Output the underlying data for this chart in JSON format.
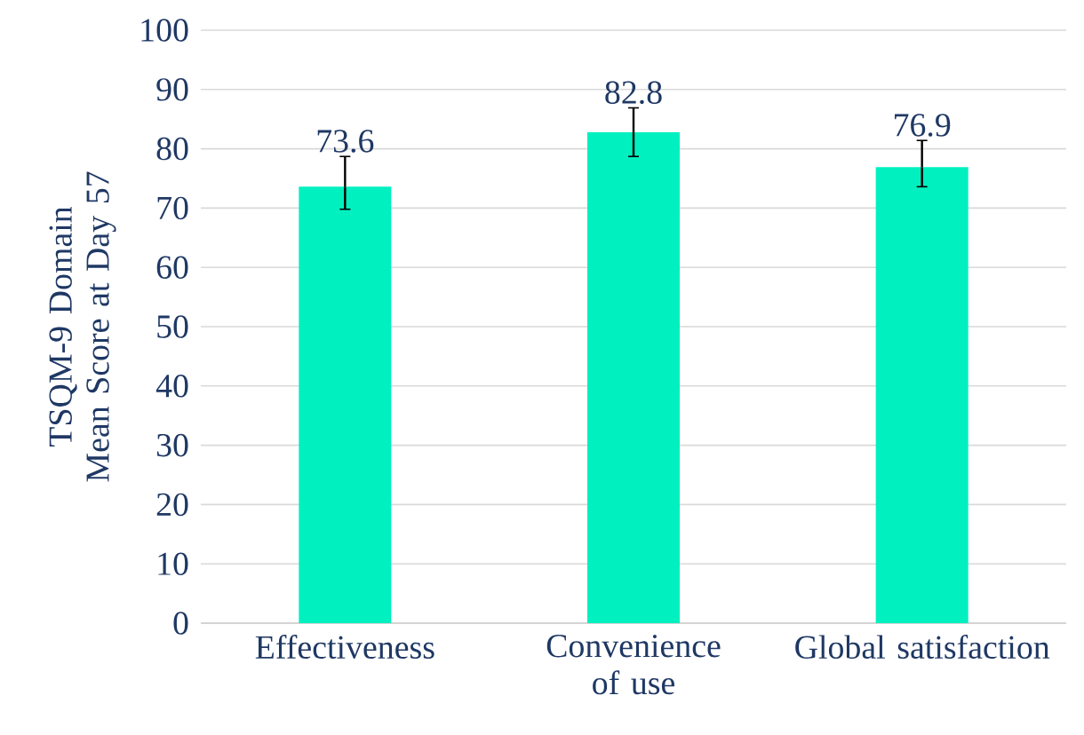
{
  "chart_data": {
    "type": "bar",
    "ylabel": "TSQM-9 Domain Mean Score at Day 57",
    "categories": [
      "Effectiveness",
      "Convenience of use",
      "Global satisfaction"
    ],
    "values": [
      73.6,
      82.8,
      76.9
    ],
    "errors": [
      [
        69.8,
        78.7
      ],
      [
        78.7,
        86.9
      ],
      [
        73.6,
        81.4
      ]
    ],
    "color": "#00f0c0",
    "ylim": [
      0,
      100
    ],
    "yticks": [
      0,
      10,
      20,
      30,
      40,
      50,
      60,
      70,
      80,
      90,
      100
    ],
    "grid": "y",
    "data_labels": true
  }
}
